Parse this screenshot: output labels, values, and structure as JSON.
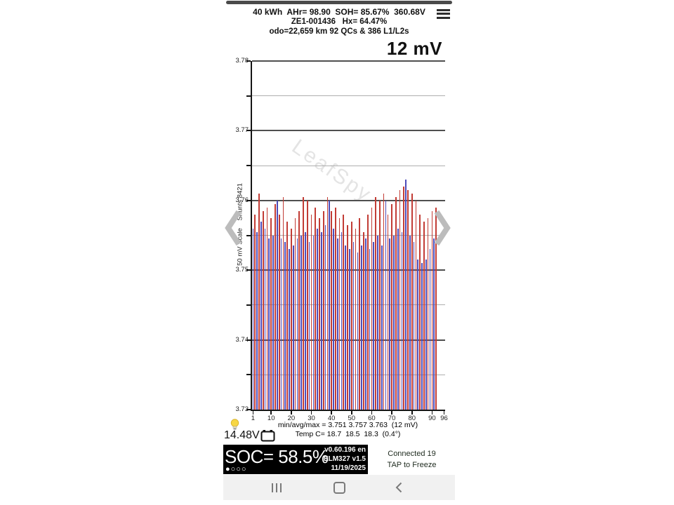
{
  "colors": {
    "bar_red": "#c23c35",
    "bar_blue": "#4d4cba",
    "green_panel": "#85e691",
    "navbar_bg": "#f1f1f1",
    "nav_icon": "#7a7a7a",
    "chevron": "#bcbcbc"
  },
  "header": {
    "line1": "40 kWh  AHr= 98.90  SOH= 85.67%  360.68V",
    "line2": "ZE1-001436   Hx= 64.47%",
    "line3": "odo=22,659 km 92 QCs & 386 L1/L2s"
  },
  "chart_data": {
    "type": "bar",
    "title": "12 mV",
    "ylabel": "50 mV Scale    Shunts 8421",
    "watermark": "LeafSpy",
    "ylim": [
      3.73,
      3.78
    ],
    "ytick_labels": [
      "3.78",
      "3.77",
      "3.76",
      "3.75",
      "3.74",
      "3.73"
    ],
    "xticks": [
      1,
      10,
      20,
      30,
      40,
      50,
      60,
      70,
      80,
      90,
      96
    ],
    "x_range": [
      1,
      96
    ],
    "grid": "major 0.01V dark, minor 0.005V light",
    "legend_position": "none",
    "bar_colors": {
      "r": "#c23c35",
      "b": "#4d4cba"
    },
    "cell_pattern": "brbrbrbrbrbrbrbrbrbrbrbrbrbrbrbrbrbrbrbrbrbrbrbrbrbrbrbrbrbrbrbrbrbrbrbrbrbrbrbrbrbrbrbrbrbr",
    "values": [
      3.756,
      3.758,
      3.7555,
      3.761,
      3.757,
      3.7585,
      3.756,
      3.759,
      3.7545,
      3.7575,
      3.755,
      3.7595,
      3.76,
      3.758,
      3.7545,
      3.7605,
      3.754,
      3.757,
      3.753,
      3.756,
      3.7535,
      3.7575,
      3.7545,
      3.7585,
      3.755,
      3.7605,
      3.7555,
      3.76,
      3.754,
      3.758,
      3.755,
      3.759,
      3.756,
      3.7575,
      3.7555,
      3.7585,
      3.7565,
      3.7605,
      3.76,
      3.7585,
      3.756,
      3.759,
      3.7545,
      3.7575,
      3.7555,
      3.758,
      3.7535,
      3.7565,
      3.753,
      3.757,
      3.754,
      3.756,
      3.7525,
      3.7575,
      3.7535,
      3.7555,
      3.7545,
      3.758,
      3.753,
      3.759,
      3.754,
      3.7605,
      3.755,
      3.76,
      3.7535,
      3.761,
      3.76,
      3.758,
      3.7545,
      3.7595,
      3.755,
      3.7605,
      3.756,
      3.7615,
      3.7555,
      3.762,
      3.763,
      3.7615,
      3.755,
      3.761,
      3.754,
      3.76,
      3.7515,
      3.758,
      3.751,
      3.757,
      3.7515,
      3.7575,
      3.753,
      3.7585,
      3.7545,
      3.759,
      3.756,
      3.76,
      3.7575,
      3.759
    ],
    "caption1": "min/avg/max = 3.751 3.757 3.763  (12 mV)",
    "caption2": "Temp C= 18.7  18.5  18.3  (0.4°)",
    "stats": {
      "min": 3.751,
      "avg": 3.757,
      "max": 3.763,
      "spread_mv": 12,
      "temp_values_c": [
        18.7,
        18.5,
        18.3
      ],
      "temp_spread_c": 0.4
    }
  },
  "aux": {
    "battery_12v": "14.48V"
  },
  "footer": {
    "soc": "SOC= 58.5%",
    "version": "v0.60.196 en",
    "adapter": "ELM327 v1.5",
    "date": "11/19/2025",
    "page_dots": "●○○○",
    "connection_line1": "Connected 19",
    "connection_line2": "TAP to Freeze"
  }
}
